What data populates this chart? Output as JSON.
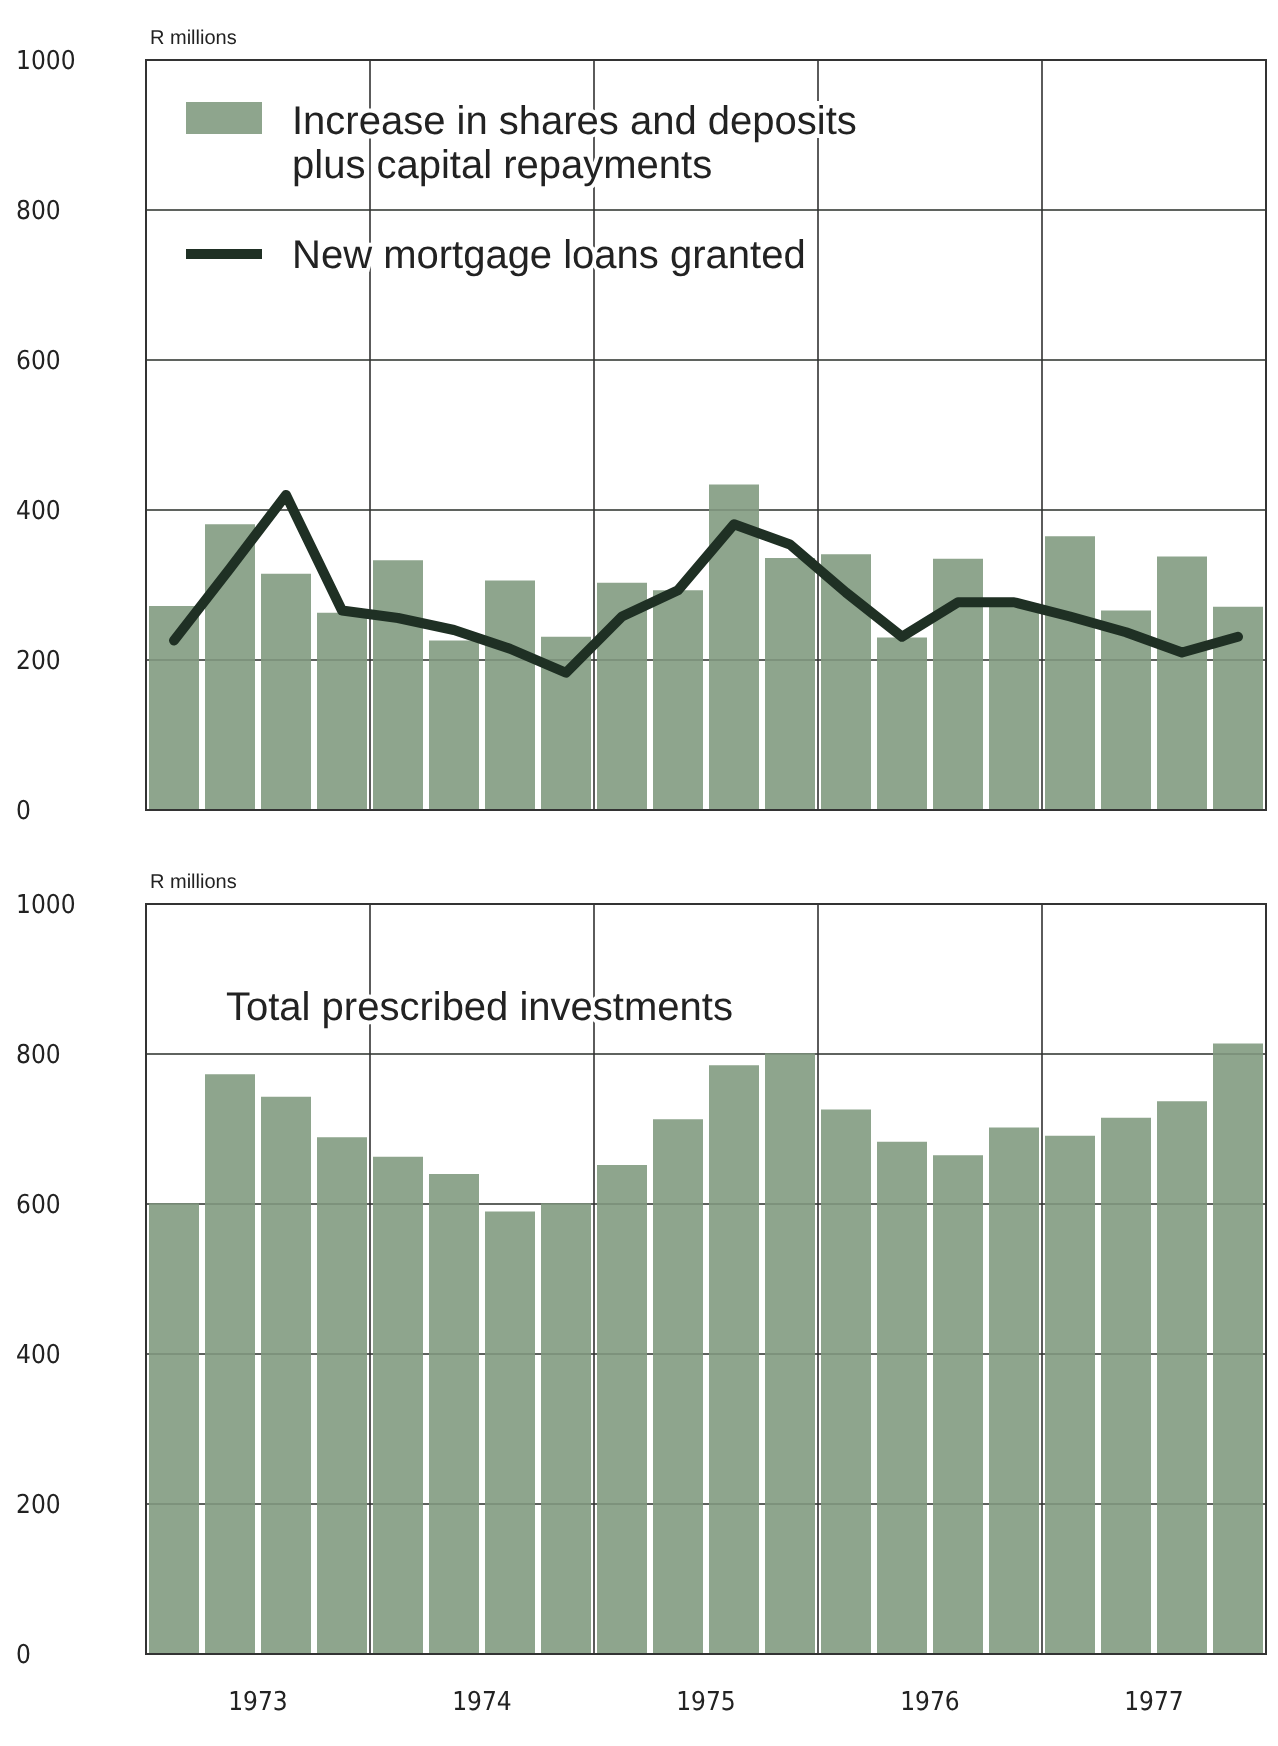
{
  "chart_data": [
    {
      "type": "bar",
      "ylabel": "R millions",
      "x": [
        1973.125,
        1973.375,
        1973.625,
        1973.875,
        1974.125,
        1974.375,
        1974.625,
        1974.875,
        1975.125,
        1975.375,
        1975.625,
        1975.875,
        1976.125,
        1976.375,
        1976.625,
        1976.875,
        1977.125,
        1977.375,
        1977.625,
        1977.875
      ],
      "series": [
        {
          "name": "Increase in shares and deposits plus capital repayments",
          "color": "#8ea58d",
          "values": [
            272,
            381,
            315,
            263,
            333,
            226,
            306,
            231,
            303,
            293,
            434,
            336,
            341,
            230,
            335,
            275,
            365,
            266,
            338,
            271
          ]
        },
        {
          "name": "New mortgage loans granted",
          "type": "line",
          "color": "#1f3024",
          "values": [
            226,
            322,
            420,
            266,
            256,
            240,
            215,
            183,
            258,
            293,
            381,
            354,
            290,
            231,
            277,
            277,
            258,
            237,
            210,
            231
          ]
        }
      ],
      "xlim": [
        1973,
        1978
      ],
      "xticks": [
        {
          "value": 1974,
          "label": null
        },
        {
          "value": 1975,
          "label": null
        },
        {
          "value": 1976,
          "label": null
        },
        {
          "value": 1977,
          "label": null
        }
      ],
      "ylim": [
        0,
        1000
      ],
      "yticks": [
        0,
        200,
        400,
        600,
        800,
        1000
      ],
      "grid": true,
      "legend": "top left",
      "tick_labels": "y",
      "marker": "none",
      "line_style": "solid"
    },
    {
      "type": "bar",
      "title": "Total prescribed investments",
      "ylabel": "R millions",
      "x": [
        1973.125,
        1973.375,
        1973.625,
        1973.875,
        1974.125,
        1974.375,
        1974.625,
        1974.875,
        1975.125,
        1975.375,
        1975.625,
        1975.875,
        1976.125,
        1976.375,
        1976.625,
        1976.875,
        1977.125,
        1977.375,
        1977.625,
        1977.875
      ],
      "color": "#8ea58d",
      "values": [
        601,
        773,
        743,
        689,
        663,
        640,
        590,
        601,
        652,
        713,
        785,
        801,
        726,
        683,
        665,
        702,
        691,
        715,
        737,
        814
      ],
      "xlim": [
        1973,
        1978
      ],
      "xticks": [
        {
          "value": 1973.5,
          "label": "1973"
        },
        {
          "value": 1974,
          "label": null
        },
        {
          "value": 1974.5,
          "label": "1974"
        },
        {
          "value": 1975,
          "label": null
        },
        {
          "value": 1975.5,
          "label": "1975"
        },
        {
          "value": 1976,
          "label": null
        },
        {
          "value": 1976.5,
          "label": "1976"
        },
        {
          "value": 1977,
          "label": null
        },
        {
          "value": 1977.5,
          "label": "1977"
        }
      ],
      "ylim": [
        0,
        1000
      ],
      "yticks": [
        0,
        200,
        400,
        600,
        800,
        1000
      ],
      "grid": true
    }
  ]
}
